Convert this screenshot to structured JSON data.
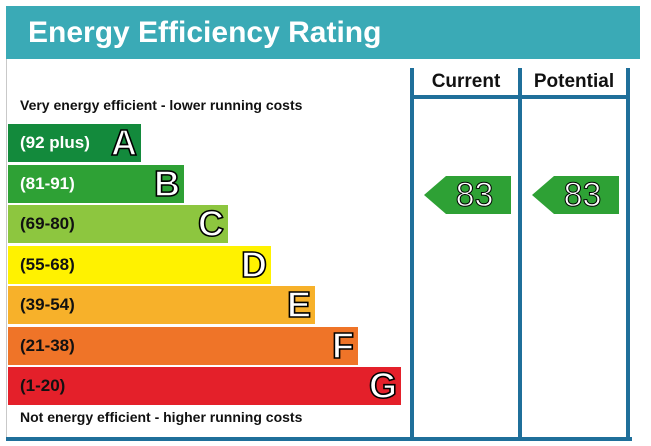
{
  "title": "Energy Efficiency Rating",
  "top_note": "Very energy efficient - lower running costs",
  "bottom_note": "Not energy efficient - higher running costs",
  "columns": {
    "current": "Current",
    "potential": "Potential"
  },
  "bands": [
    {
      "range": "(92 plus)",
      "letter": "A",
      "color": "#138a3c",
      "text_color": "#ffffff"
    },
    {
      "range": "(81-91)",
      "letter": "B",
      "color": "#2ea135",
      "text_color": "#ffffff"
    },
    {
      "range": "(69-80)",
      "letter": "C",
      "color": "#8dc63f",
      "text_color": "#111111"
    },
    {
      "range": "(55-68)",
      "letter": "D",
      "color": "#fff200",
      "text_color": "#111111"
    },
    {
      "range": "(39-54)",
      "letter": "E",
      "color": "#f7b12a",
      "text_color": "#111111"
    },
    {
      "range": "(21-38)",
      "letter": "F",
      "color": "#ef7428",
      "text_color": "#111111"
    },
    {
      "range": "(1-20)",
      "letter": "G",
      "color": "#e4202a",
      "text_color": "#111111"
    }
  ],
  "current": {
    "value": "83",
    "band": "B",
    "color": "#2ea135"
  },
  "potential": {
    "value": "83",
    "band": "B",
    "color": "#2ea135"
  }
}
